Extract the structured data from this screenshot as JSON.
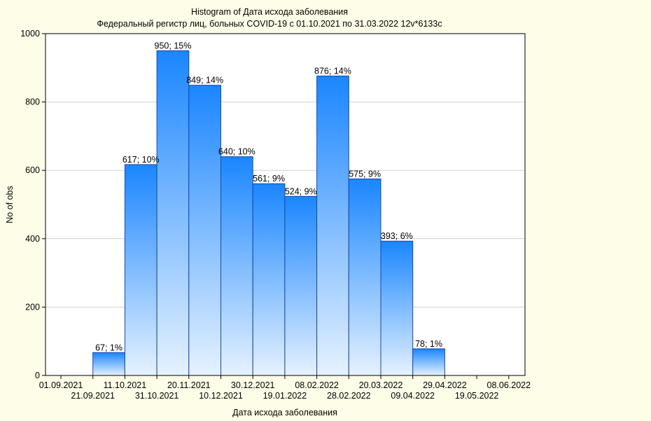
{
  "chart_data": {
    "type": "bar",
    "title": "Histogram of Дата исхода заболевания",
    "subtitle": "Федеральный регистр лиц, больных COVID-19 с 01.10.2021 по 31.03.2022 12v*6133c",
    "xlabel": "Дата исхода заболевания",
    "ylabel": "No of obs",
    "ylim": [
      0,
      1000
    ],
    "yticks": [
      "0",
      "200",
      "400",
      "600",
      "800",
      "1000"
    ],
    "xticks": [
      "01.09.2021",
      "21.09.2021",
      "11.10.2021",
      "31.10.2021",
      "20.11.2021",
      "10.12.2021",
      "30.12.2021",
      "19.01.2022",
      "08.02.2022",
      "28.02.2022",
      "20.03.2022",
      "09.04.2022",
      "29.04.2022",
      "19.05.2022",
      "08.06.2022"
    ],
    "bins": [
      {
        "from": "21.09.2021",
        "to": "11.10.2021",
        "value": 67,
        "label": "67; 1%"
      },
      {
        "from": "11.10.2021",
        "to": "31.10.2021",
        "value": 617,
        "label": "617; 10%"
      },
      {
        "from": "31.10.2021",
        "to": "20.11.2021",
        "value": 950,
        "label": "950; 15%"
      },
      {
        "from": "20.11.2021",
        "to": "10.12.2021",
        "value": 849,
        "label": "849; 14%"
      },
      {
        "from": "10.12.2021",
        "to": "30.12.2021",
        "value": 640,
        "label": "640; 10%"
      },
      {
        "from": "30.12.2021",
        "to": "19.01.2022",
        "value": 561,
        "label": "561; 9%"
      },
      {
        "from": "19.01.2022",
        "to": "08.02.2022",
        "value": 524,
        "label": "524; 9%"
      },
      {
        "from": "08.02.2022",
        "to": "28.02.2022",
        "value": 876,
        "label": "876; 14%"
      },
      {
        "from": "28.02.2022",
        "to": "20.03.2022",
        "value": 575,
        "label": "575; 9%"
      },
      {
        "from": "20.03.2022",
        "to": "09.04.2022",
        "value": 393,
        "label": "393; 6%"
      },
      {
        "from": "09.04.2022",
        "to": "29.04.2022",
        "value": 78,
        "label": "78; 1%"
      }
    ],
    "grid": true,
    "legend": "none",
    "colors": {
      "background": "#fdfde8",
      "plot": "#ffffff",
      "bar_top": "#1a86ff",
      "bar_bottom": "#e6f2ff",
      "bar_stroke": "#1747a8",
      "grid": "#d0d0d0"
    }
  }
}
